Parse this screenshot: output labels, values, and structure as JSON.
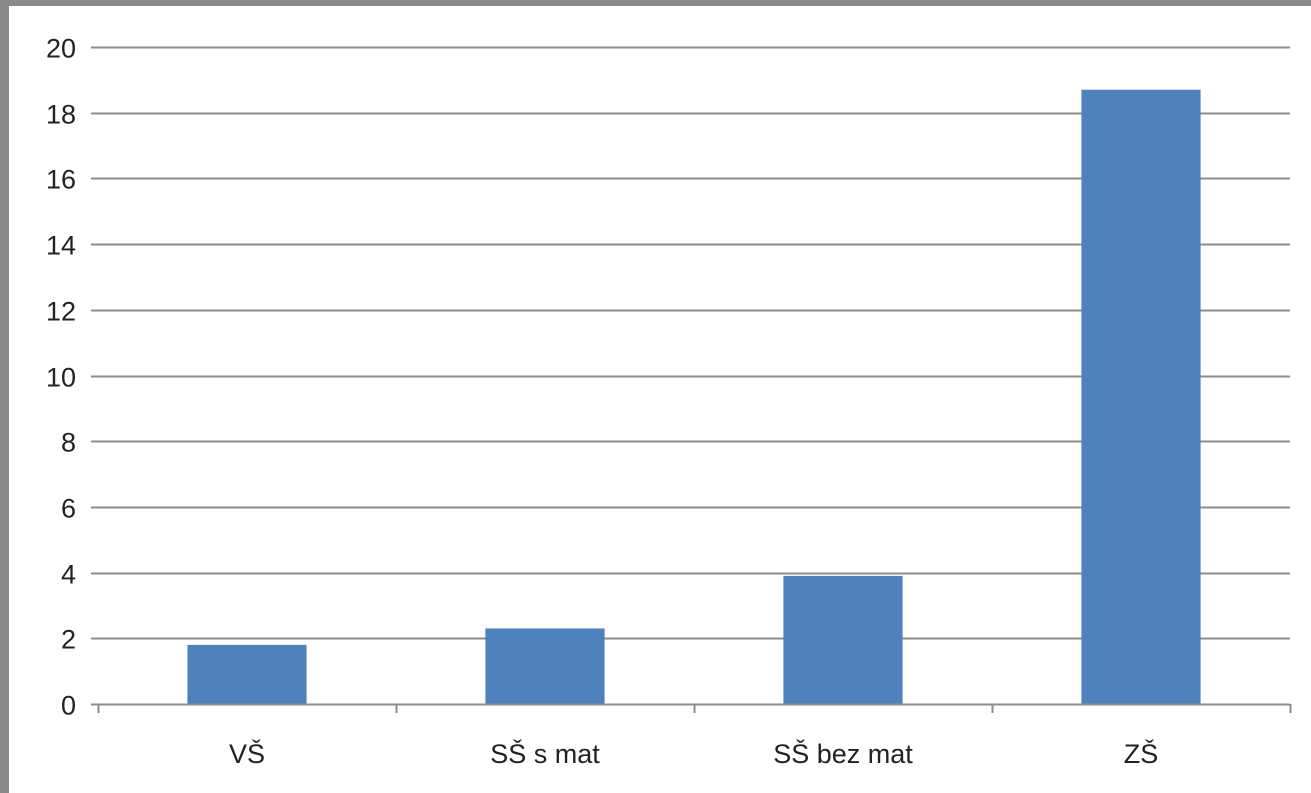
{
  "chart_data": {
    "type": "bar",
    "title": "",
    "xlabel": "",
    "ylabel": "",
    "categories": [
      "VŠ",
      "SŠ s mat",
      "SŠ bez mat",
      "ZŠ"
    ],
    "values": [
      1.8,
      2.3,
      3.9,
      18.7
    ],
    "ylim": [
      0,
      20
    ],
    "y_ticks": [
      "0",
      "2",
      "4",
      "6",
      "8",
      "10",
      "12",
      "14",
      "16",
      "18",
      "20"
    ],
    "grid": true,
    "legend": "none",
    "colors": {
      "bar": "#4f81bd",
      "grid": "#8c8c8c",
      "frame": "#8a8a8a"
    }
  }
}
